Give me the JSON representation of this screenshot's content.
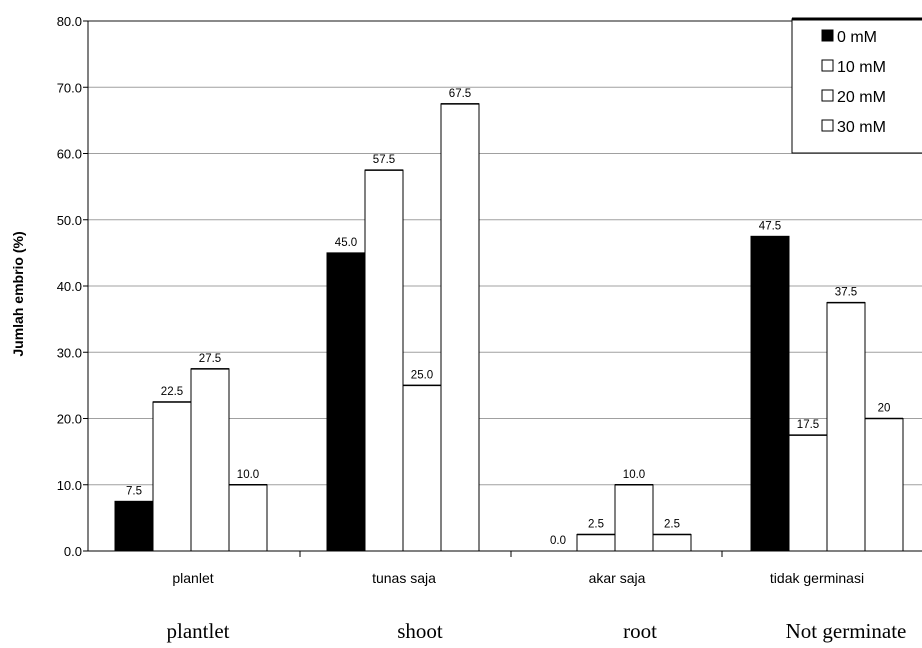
{
  "chart_data": {
    "type": "bar",
    "ylabel": "Jumlah embrio (%)",
    "xlabel": "",
    "ylim": [
      0,
      80
    ],
    "yticks": [
      "0.0",
      "10.0",
      "20.0",
      "30.0",
      "40.0",
      "50.0",
      "60.0",
      "70.0",
      "80.0"
    ],
    "grid": "horizontal",
    "legend_position": "top-right",
    "categories": [
      "planlet",
      "tunas saja",
      "akar saja",
      "tidak germinasi"
    ],
    "english_labels": [
      "plantlet",
      "shoot",
      "root",
      "Not germinate"
    ],
    "series": [
      {
        "name": "0 mM",
        "color": "#000000",
        "values": [
          7.5,
          45.0,
          0.0,
          47.5
        ],
        "labels": [
          "7.5",
          "45.0",
          "0.0",
          "47.5"
        ]
      },
      {
        "name": "10 mM",
        "color": "#ffffff",
        "values": [
          22.5,
          57.5,
          2.5,
          17.5
        ],
        "labels": [
          "22.5",
          "57.5",
          "2.5",
          "17.5"
        ]
      },
      {
        "name": "20 mM",
        "color": "#ffffff",
        "values": [
          27.5,
          25.0,
          10.0,
          37.5
        ],
        "labels": [
          "27.5",
          "25.0",
          "10.0",
          "37.5"
        ]
      },
      {
        "name": "30 mM",
        "color": "#ffffff",
        "values": [
          10.0,
          67.5,
          2.5,
          20
        ],
        "labels": [
          "10.0",
          "67.5",
          "2.5",
          "20"
        ]
      }
    ]
  }
}
